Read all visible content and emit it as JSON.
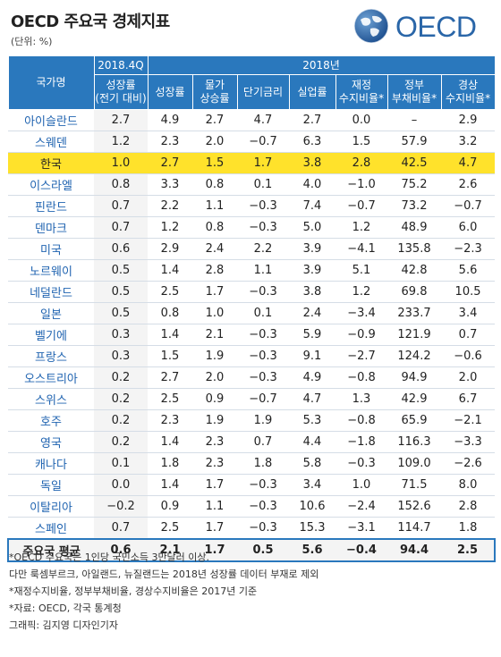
{
  "title": "OECD 주요국 경제지표",
  "unit": "(단위: %)",
  "logo_text": "OECD",
  "header": {
    "country": "국가명",
    "group_2018q4": "2018.4Q",
    "group_2018": "2018년",
    "columns": [
      [
        "성장률",
        "(전기 대비)"
      ],
      [
        "성장률"
      ],
      [
        "물가",
        "상승률"
      ],
      [
        "단기금리"
      ],
      [
        "실업률"
      ],
      [
        "재정",
        "수지비율*"
      ],
      [
        "정부",
        "부채비율*"
      ],
      [
        "경상",
        "수지비율*"
      ]
    ]
  },
  "rows": [
    {
      "name": "아이슬란드",
      "v": [
        "2.7",
        "4.9",
        "2.7",
        "4.7",
        "2.7",
        "0.0",
        "–",
        "2.9"
      ]
    },
    {
      "name": "스웨덴",
      "v": [
        "1.2",
        "2.3",
        "2.0",
        "−0.7",
        "6.3",
        "1.5",
        "57.9",
        "3.2"
      ]
    },
    {
      "name": "한국",
      "v": [
        "1.0",
        "2.7",
        "1.5",
        "1.7",
        "3.8",
        "2.8",
        "42.5",
        "4.7"
      ],
      "highlight": true
    },
    {
      "name": "이스라엘",
      "v": [
        "0.8",
        "3.3",
        "0.8",
        "0.1",
        "4.0",
        "−1.0",
        "75.2",
        "2.6"
      ]
    },
    {
      "name": "핀란드",
      "v": [
        "0.7",
        "2.2",
        "1.1",
        "−0.3",
        "7.4",
        "−0.7",
        "73.2",
        "−0.7"
      ]
    },
    {
      "name": "덴마크",
      "v": [
        "0.7",
        "1.2",
        "0.8",
        "−0.3",
        "5.0",
        "1.2",
        "48.9",
        "6.0"
      ]
    },
    {
      "name": "미국",
      "v": [
        "0.6",
        "2.9",
        "2.4",
        "2.2",
        "3.9",
        "−4.1",
        "135.8",
        "−2.3"
      ]
    },
    {
      "name": "노르웨이",
      "v": [
        "0.5",
        "1.4",
        "2.8",
        "1.1",
        "3.9",
        "5.1",
        "42.8",
        "5.6"
      ]
    },
    {
      "name": "네덜란드",
      "v": [
        "0.5",
        "2.5",
        "1.7",
        "−0.3",
        "3.8",
        "1.2",
        "69.8",
        "10.5"
      ]
    },
    {
      "name": "일본",
      "v": [
        "0.5",
        "0.8",
        "1.0",
        "0.1",
        "2.4",
        "−3.4",
        "233.7",
        "3.4"
      ]
    },
    {
      "name": "벨기에",
      "v": [
        "0.3",
        "1.4",
        "2.1",
        "−0.3",
        "5.9",
        "−0.9",
        "121.9",
        "0.7"
      ]
    },
    {
      "name": "프랑스",
      "v": [
        "0.3",
        "1.5",
        "1.9",
        "−0.3",
        "9.1",
        "−2.7",
        "124.2",
        "−0.6"
      ]
    },
    {
      "name": "오스트리아",
      "v": [
        "0.2",
        "2.7",
        "2.0",
        "−0.3",
        "4.9",
        "−0.8",
        "94.9",
        "2.0"
      ]
    },
    {
      "name": "스위스",
      "v": [
        "0.2",
        "2.5",
        "0.9",
        "−0.7",
        "4.7",
        "1.3",
        "42.9",
        "6.7"
      ]
    },
    {
      "name": "호주",
      "v": [
        "0.2",
        "2.3",
        "1.9",
        "1.9",
        "5.3",
        "−0.8",
        "65.9",
        "−2.1"
      ]
    },
    {
      "name": "영국",
      "v": [
        "0.2",
        "1.4",
        "2.3",
        "0.7",
        "4.4",
        "−1.8",
        "116.3",
        "−3.3"
      ]
    },
    {
      "name": "캐나다",
      "v": [
        "0.1",
        "1.8",
        "2.3",
        "1.8",
        "5.8",
        "−0.3",
        "109.0",
        "−2.6"
      ]
    },
    {
      "name": "독일",
      "v": [
        "0.0",
        "1.4",
        "1.7",
        "−0.3",
        "3.4",
        "1.0",
        "71.5",
        "8.0"
      ]
    },
    {
      "name": "이탈리아",
      "v": [
        "−0.2",
        "0.9",
        "1.1",
        "−0.3",
        "10.6",
        "−2.4",
        "152.6",
        "2.8"
      ]
    },
    {
      "name": "스페인",
      "v": [
        "0.7",
        "2.5",
        "1.7",
        "−0.3",
        "15.3",
        "−3.1",
        "114.7",
        "1.8"
      ]
    }
  ],
  "average": {
    "name": "주요국 평균",
    "v": [
      "0.6",
      "2.1",
      "1.7",
      "0.5",
      "5.6",
      "−0.4",
      "94.4",
      "2.5"
    ]
  },
  "notes": [
    "*OECD 주요국은 1인당 국민소득 3만달러 이상.",
    "  다만 룩셈부르크, 아일랜드, 뉴질랜드는 2018년 성장률 데이터 부재로 제외",
    "*재정수지비율, 정부부채비율, 경상수지비율은 2017년 기준",
    "*자료: OECD, 각국 통계청",
    "그래픽: 김지영 디자인기자"
  ],
  "colors": {
    "header": "#2a78bd",
    "highlight": "#ffe22b",
    "country_text": "#1f63b0"
  }
}
